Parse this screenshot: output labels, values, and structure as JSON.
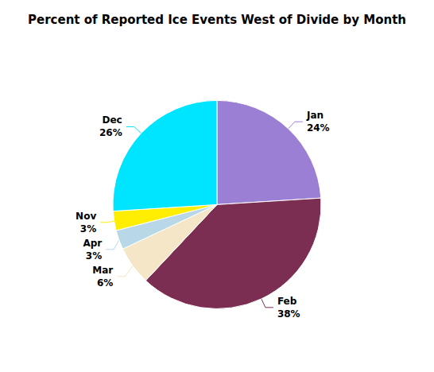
{
  "chart_data": {
    "type": "pie",
    "title": "Percent of Reported Ice Events West of Divide by Month",
    "categories": [
      "Jan",
      "Feb",
      "Mar",
      "Apr",
      "Nov",
      "Dec"
    ],
    "values": [
      24,
      38,
      6,
      3,
      3,
      26
    ],
    "value_labels": [
      "24%",
      "38%",
      "6%",
      "3%",
      "3%",
      "26%"
    ],
    "colors": [
      "#9b7fd4",
      "#7b2d52",
      "#f5e6c8",
      "#b8d8e8",
      "#ffee00",
      "#00e5ff"
    ],
    "data_labels": true
  }
}
